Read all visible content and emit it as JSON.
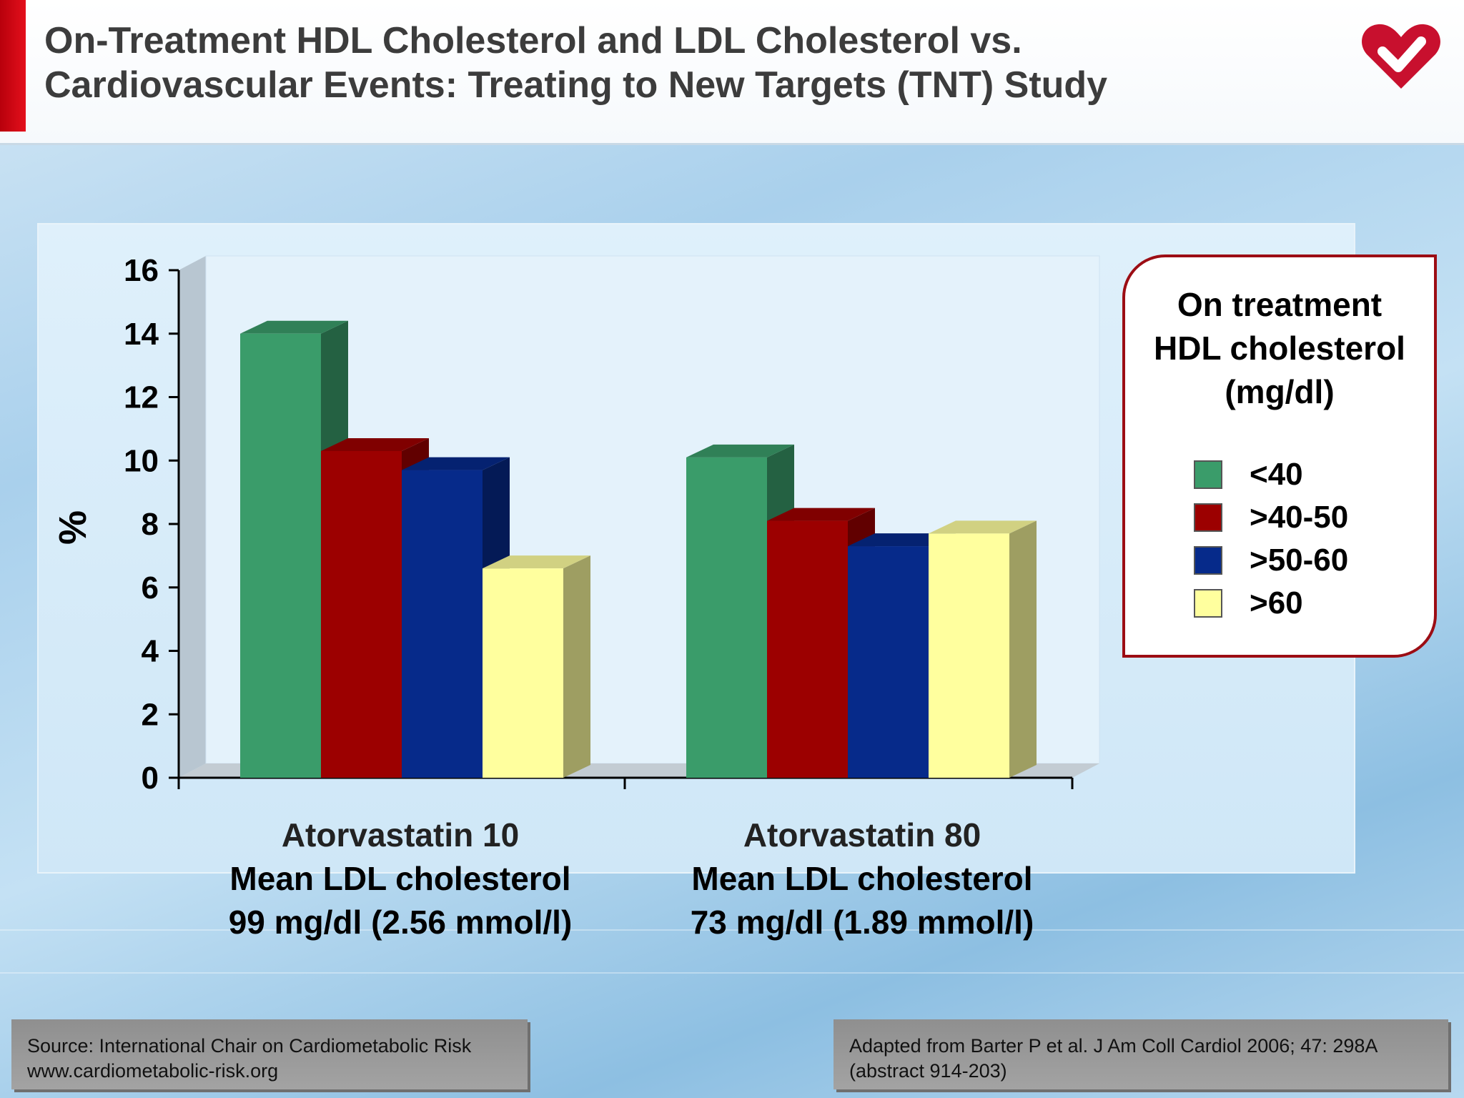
{
  "header": {
    "title_line1": "On-Treatment HDL Cholesterol and LDL Cholesterol vs.",
    "title_line2": "Cardiovascular Events: Treating to New Targets (TNT) Study"
  },
  "logo": {
    "icon": "heart-check-icon",
    "color": "#c8102e"
  },
  "colors": {
    "accent": "#d1101c",
    "green": "#3a9c6a",
    "red": "#9c0000",
    "blue": "#062a8a",
    "yellow": "#ffff9e"
  },
  "chart_data": {
    "type": "bar",
    "style": "3d",
    "ylabel": "%",
    "ylim": [
      0,
      16
    ],
    "yticks": [
      0,
      2,
      4,
      6,
      8,
      10,
      12,
      14,
      16
    ],
    "grid": false,
    "legend_position": "right",
    "categories": [
      "Atorvastatin 10",
      "Atorvastatin 80"
    ],
    "category_labels": [
      {
        "line1": "Atorvastatin 10",
        "line2": "Mean LDL cholesterol",
        "line3": "99 mg/dl (2.56 mmol/l)"
      },
      {
        "line1": "Atorvastatin 80",
        "line2": "Mean LDL cholesterol",
        "line3": "73 mg/dl (1.89 mmol/l)"
      }
    ],
    "legend_title": [
      "On treatment",
      "HDL cholesterol",
      "(mg/dl)"
    ],
    "series": [
      {
        "name": "<40",
        "color": "#3a9c6a",
        "values": [
          14.0,
          10.1
        ]
      },
      {
        "name": ">40-50",
        "color": "#9c0000",
        "values": [
          10.3,
          8.1
        ]
      },
      {
        "name": ">50-60",
        "color": "#062a8a",
        "values": [
          9.7,
          7.3
        ]
      },
      {
        "name": ">60",
        "color": "#ffff9e",
        "values": [
          6.6,
          7.7
        ]
      }
    ]
  },
  "footer": {
    "left_line1": "Source: International Chair on Cardiometabolic Risk",
    "left_line2": "www.cardiometabolic-risk.org",
    "right_line1": "Adapted from Barter P et al. J Am Coll Cardiol 2006; 47: 298A",
    "right_line2": "(abstract 914-203)"
  }
}
